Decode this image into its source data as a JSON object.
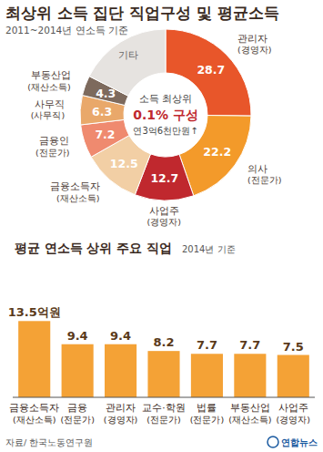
{
  "chart_data": [
    {
      "type": "pie",
      "title": "최상위 소득 집단 직업구성 및 평균소득",
      "subtitle": "2011~2014년 연소득 기준",
      "categories": [
        "관리자(경영자)",
        "의사(전문가)",
        "사업주(경영자)",
        "금융소득자(재산소득)",
        "금융인(전문가)",
        "사무직(사무직)",
        "부동산업(재산소득)",
        "기타"
      ],
      "values": [
        28.7,
        22.2,
        12.7,
        12.5,
        7.2,
        6.3,
        4.3,
        20
      ],
      "value_labels": [
        "28.7",
        "22.2",
        "12.7",
        "12.5",
        "7.2",
        "6.3",
        "4.3",
        null
      ],
      "colors": [
        "#e8562a",
        "#f39a2a",
        "#c0282e",
        "#f2cfa5",
        "#ef8a6f",
        "#e9a86a",
        "#7d6a5d",
        "#e6e3e0"
      ],
      "data_labels": true,
      "annotations": [
        "소득 최상위",
        "0.1% 구성",
        "연3억6천만원↑"
      ]
    },
    {
      "type": "bar",
      "title": "평균 연소득 상위 주요 직업",
      "subtitle": "2014년 기준",
      "categories": [
        "금융소득자(재산소득)",
        "금융(전문가)",
        "관리자(경영자)",
        "교수·학원(전문가)",
        "법률(전문가)",
        "부동산업(재산소득)",
        "사업주(경영자)"
      ],
      "values": [
        13.5,
        9.4,
        9.4,
        8.2,
        7.7,
        7.7,
        7.5
      ],
      "value_labels": [
        "13.5억원",
        "9.4",
        "9.4",
        "8.2",
        "7.7",
        "7.7",
        "7.5"
      ],
      "color": "#f4a236",
      "ylim": [
        0,
        15
      ],
      "tick_labels": false,
      "data_labels": true
    }
  ],
  "source": "자료/ 한국노동연구원",
  "credit": "연합뉴스"
}
